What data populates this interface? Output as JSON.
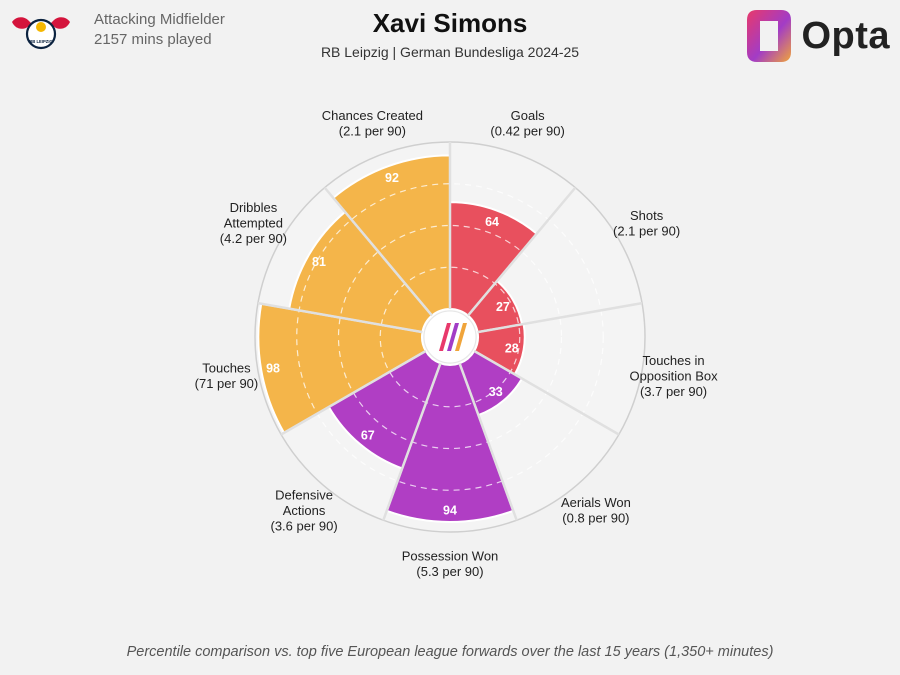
{
  "header": {
    "position": "Attacking Midfielder",
    "minutes": "2157 mins played",
    "player_name": "Xavi Simons",
    "subtitle": "RB Leipzig | German Bundesliga 2024-25",
    "logo_text": "RB LEIPZIG",
    "brand": "Opta"
  },
  "footer": {
    "note": "Percentile comparison vs. top five European league forwards over the last 15 years (1,350+ minutes)"
  },
  "colors": {
    "attacking": "#e8505e",
    "possession": "#b03ec4",
    "creation": "#f4b54a",
    "background": "#f2f2f2",
    "gridline": "#ffffff",
    "ring": "#cfcfcf"
  },
  "chart_data": {
    "type": "polar-bar",
    "scale": [
      0,
      100
    ],
    "categories": [
      {
        "name": "Goals",
        "rate": "(0.42 per 90)",
        "value": 64,
        "group": "attacking"
      },
      {
        "name": "Shots",
        "rate": "(2.1 per 90)",
        "value": 27,
        "group": "attacking"
      },
      {
        "name": "Touches in Opposition Box",
        "rate": "(3.7 per 90)",
        "value": 28,
        "group": "attacking"
      },
      {
        "name": "Aerials Won",
        "rate": "(0.8 per 90)",
        "value": 33,
        "group": "possession"
      },
      {
        "name": "Possession Won",
        "rate": "(5.3 per 90)",
        "value": 94,
        "group": "possession"
      },
      {
        "name": "Defensive Actions",
        "rate": "(3.6 per 90)",
        "value": 67,
        "group": "possession"
      },
      {
        "name": "Touches",
        "rate": "(71 per 90)",
        "value": 98,
        "group": "creation"
      },
      {
        "name": "Dribbles Attempted",
        "rate": "(4.2 per 90)",
        "value": 81,
        "group": "creation"
      },
      {
        "name": "Chances Created",
        "rate": "(2.1 per 90)",
        "value": 92,
        "group": "creation"
      }
    ]
  }
}
